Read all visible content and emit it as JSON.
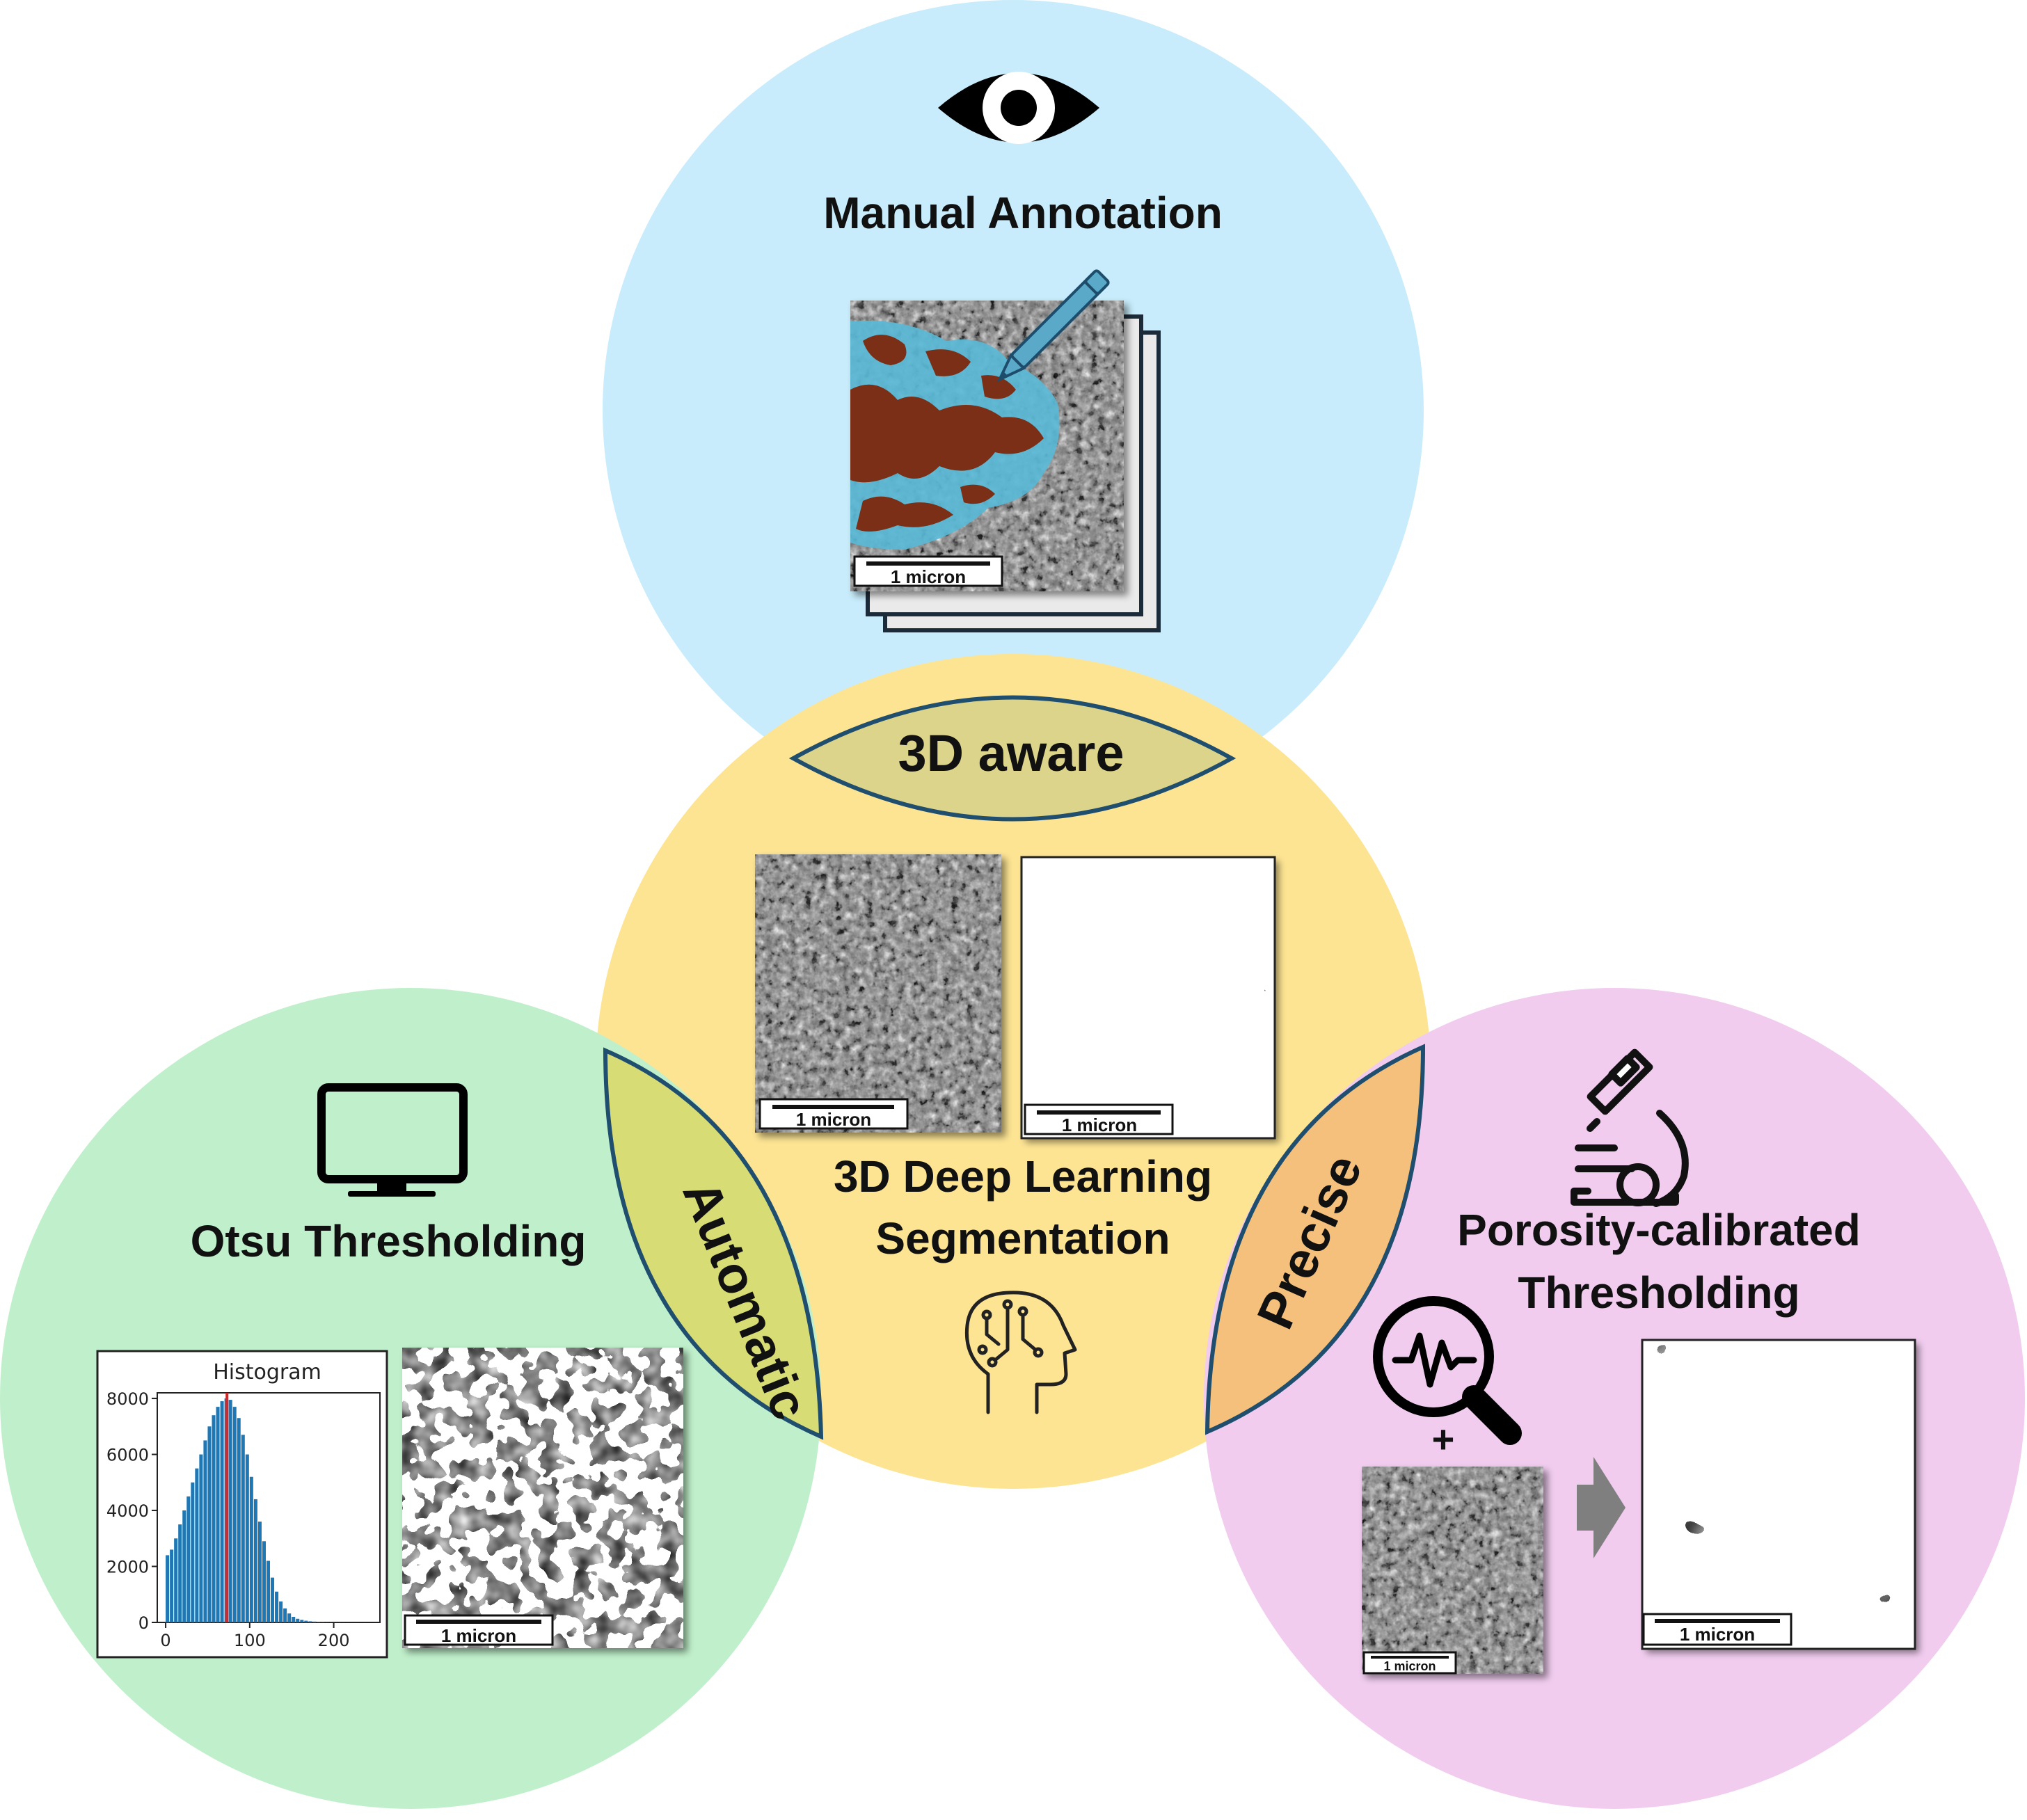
{
  "circles": {
    "manual": {
      "title": "Manual Annotation",
      "color": "#c8ecfb"
    },
    "deep": {
      "title_line1": "3D Deep Learning",
      "title_line2": "Segmentation",
      "color": "#fde493"
    },
    "otsu": {
      "title": "Otsu Thresholding",
      "color": "#c0f0cb"
    },
    "porosity": {
      "title_line1": "Porosity-calibrated",
      "title_line2": "Thresholding",
      "color": "#f1ccef"
    }
  },
  "lenses": {
    "aware": {
      "label": "3D aware",
      "color": "#dcd48a"
    },
    "automatic": {
      "label": "Automatic",
      "color": "#d7dc75"
    },
    "precise": {
      "label": "Precise",
      "color": "#f5c07c"
    }
  },
  "scale_bar_label": "1 micron",
  "plus_sign": "+",
  "icons": [
    "eye-icon",
    "pencil-icon",
    "monitor-icon",
    "brain-circuit-icon",
    "microscope-icon",
    "magnifier-signal-icon",
    "arrow-right-icon"
  ],
  "chart_data": {
    "type": "bar",
    "title": "Histogram",
    "xlabel": "",
    "ylabel": "",
    "xlim": [
      -10,
      255
    ],
    "ylim": [
      0,
      8200
    ],
    "xticks": [
      "0",
      "100",
      "200"
    ],
    "yticks": [
      "0",
      "2000",
      "4000",
      "6000",
      "8000"
    ],
    "threshold": 73,
    "threshold_color": "#d62728",
    "bar_color": "#1f77b4",
    "bins": [
      {
        "x": 0,
        "y": 2400
      },
      {
        "x": 5,
        "y": 2600
      },
      {
        "x": 10,
        "y": 3000
      },
      {
        "x": 15,
        "y": 3500
      },
      {
        "x": 20,
        "y": 4000
      },
      {
        "x": 25,
        "y": 4500
      },
      {
        "x": 30,
        "y": 5000
      },
      {
        "x": 35,
        "y": 5500
      },
      {
        "x": 40,
        "y": 6000
      },
      {
        "x": 45,
        "y": 6500
      },
      {
        "x": 50,
        "y": 7000
      },
      {
        "x": 55,
        "y": 7400
      },
      {
        "x": 60,
        "y": 7700
      },
      {
        "x": 65,
        "y": 7900
      },
      {
        "x": 70,
        "y": 8000
      },
      {
        "x": 75,
        "y": 7950
      },
      {
        "x": 80,
        "y": 7700
      },
      {
        "x": 85,
        "y": 7300
      },
      {
        "x": 90,
        "y": 6700
      },
      {
        "x": 95,
        "y": 6000
      },
      {
        "x": 100,
        "y": 5200
      },
      {
        "x": 105,
        "y": 4400
      },
      {
        "x": 110,
        "y": 3600
      },
      {
        "x": 115,
        "y": 2900
      },
      {
        "x": 120,
        "y": 2200
      },
      {
        "x": 125,
        "y": 1600
      },
      {
        "x": 130,
        "y": 1100
      },
      {
        "x": 135,
        "y": 750
      },
      {
        "x": 140,
        "y": 500
      },
      {
        "x": 145,
        "y": 320
      },
      {
        "x": 150,
        "y": 200
      },
      {
        "x": 155,
        "y": 130
      },
      {
        "x": 160,
        "y": 90
      },
      {
        "x": 165,
        "y": 60
      },
      {
        "x": 170,
        "y": 40
      },
      {
        "x": 175,
        "y": 30
      },
      {
        "x": 180,
        "y": 20
      },
      {
        "x": 185,
        "y": 15
      },
      {
        "x": 190,
        "y": 10
      },
      {
        "x": 195,
        "y": 8
      },
      {
        "x": 200,
        "y": 6
      },
      {
        "x": 205,
        "y": 5
      },
      {
        "x": 210,
        "y": 4
      },
      {
        "x": 215,
        "y": 3
      },
      {
        "x": 220,
        "y": 2
      },
      {
        "x": 225,
        "y": 2
      },
      {
        "x": 230,
        "y": 1
      },
      {
        "x": 235,
        "y": 1
      },
      {
        "x": 240,
        "y": 1
      },
      {
        "x": 245,
        "y": 1
      }
    ]
  }
}
